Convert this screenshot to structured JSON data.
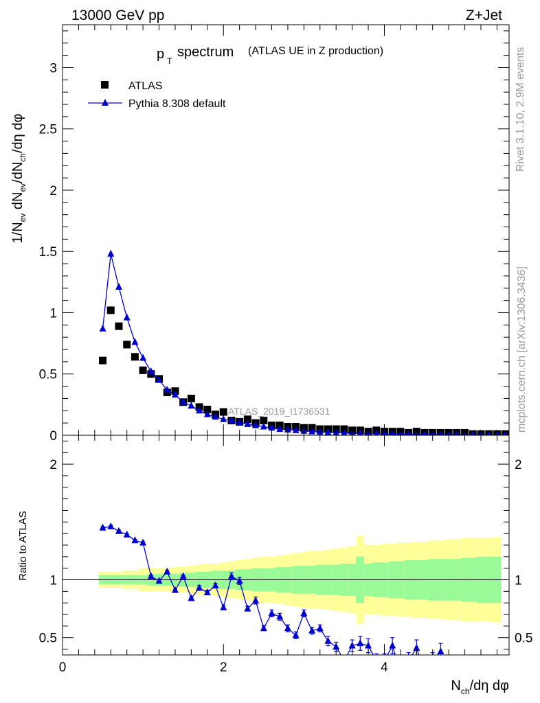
{
  "header": {
    "energy": "13000 GeV pp",
    "process": "Z+Jet"
  },
  "side_texts": {
    "rivet": "Rivet 3.1.10,  2.9M events",
    "mcplots": "mcplots.cern.ch [arXiv:1306.3436]"
  },
  "colors": {
    "mc_line": "#0000cc",
    "band_inner": "#98fb98",
    "band_outer": "#ffff99",
    "data": "#000000",
    "watermark": "#9a9a9a"
  },
  "chart_data": [
    {
      "type": "scatter",
      "title_main": "spectrum",
      "title_sub": "(ATLAS UE in Z production)",
      "ylabel": "1/N_ev dN_ev/dN_ch/dη dφ",
      "xlabel": "N_ch/dη dφ",
      "watermark": "ATLAS_2019_I1736531",
      "xlim": [
        0,
        5.55
      ],
      "ylim": [
        0,
        3.35
      ],
      "x_ticks": [
        0,
        2,
        4
      ],
      "y_ticks": [
        0,
        0.5,
        1,
        1.5,
        2,
        2.5,
        3
      ],
      "y_tick_labels": [
        "0",
        "0.5",
        "1",
        "1.5",
        "2",
        "2.5",
        "3"
      ],
      "legend": [
        {
          "name": "ATLAS",
          "marker": "square"
        },
        {
          "name": "Pythia 8.308 default",
          "marker": "triangle"
        }
      ],
      "series": [
        {
          "name": "ATLAS",
          "x": [
            0.5,
            0.6,
            0.7,
            0.8,
            0.9,
            1.0,
            1.1,
            1.2,
            1.3,
            1.4,
            1.5,
            1.6,
            1.7,
            1.8,
            1.9,
            2.0,
            2.1,
            2.2,
            2.3,
            2.4,
            2.5,
            2.6,
            2.7,
            2.8,
            2.9,
            3.0,
            3.1,
            3.2,
            3.3,
            3.4,
            3.5,
            3.6,
            3.7,
            3.8,
            3.9,
            4.0,
            4.1,
            4.2,
            4.3,
            4.4,
            4.5,
            4.6,
            4.7,
            4.8,
            4.9,
            5.0,
            5.1,
            5.2,
            5.3,
            5.4,
            5.5
          ],
          "values": [
            0.61,
            1.02,
            0.89,
            0.74,
            0.64,
            0.53,
            0.5,
            0.46,
            0.35,
            0.36,
            0.27,
            0.3,
            0.23,
            0.21,
            0.17,
            0.19,
            0.12,
            0.11,
            0.13,
            0.1,
            0.12,
            0.08,
            0.08,
            0.07,
            0.07,
            0.06,
            0.06,
            0.05,
            0.05,
            0.05,
            0.05,
            0.04,
            0.04,
            0.03,
            0.04,
            0.03,
            0.03,
            0.03,
            0.02,
            0.03,
            0.02,
            0.02,
            0.02,
            0.02,
            0.02,
            0.02,
            0.01,
            0.01,
            0.01,
            0.01,
            0.01
          ]
        },
        {
          "name": "Pythia 8.308 default",
          "x": [
            0.5,
            0.6,
            0.7,
            0.8,
            0.9,
            1.0,
            1.1,
            1.2,
            1.3,
            1.4,
            1.5,
            1.6,
            1.7,
            1.8,
            1.9,
            2.0,
            2.1,
            2.2,
            2.3,
            2.4,
            2.5,
            2.6,
            2.7,
            2.8,
            2.9,
            3.0,
            3.1,
            3.2,
            3.3,
            3.4,
            3.5,
            3.6,
            3.7,
            3.8,
            3.9,
            4.0,
            4.1,
            4.2,
            4.3,
            4.4,
            4.5,
            4.6,
            4.7,
            4.8,
            4.9,
            5.0,
            5.1,
            5.2,
            5.3,
            5.4,
            5.5
          ],
          "values": [
            0.87,
            1.48,
            1.21,
            0.96,
            0.76,
            0.63,
            0.52,
            0.45,
            0.37,
            0.33,
            0.27,
            0.24,
            0.2,
            0.17,
            0.15,
            0.13,
            0.12,
            0.1,
            0.09,
            0.08,
            0.07,
            0.06,
            0.05,
            0.045,
            0.04,
            0.035,
            0.03,
            0.027,
            0.024,
            0.021,
            0.018,
            0.016,
            0.014,
            0.012,
            0.011,
            0.01,
            0.009,
            0.008,
            0.007,
            0.006,
            0.006,
            0.005,
            0.005,
            0.004,
            0.004,
            0.003,
            0.003,
            0.003,
            0.002,
            0.002,
            0.002
          ]
        }
      ]
    },
    {
      "type": "line",
      "ylabel": "Ratio to ATLAS",
      "xlim": [
        0,
        5.55
      ],
      "ylim": [
        0.35,
        2.25
      ],
      "x_ticks": [
        0,
        2,
        4
      ],
      "x_tick_labels": [
        "0",
        "2",
        "4"
      ],
      "y_ticks": [
        0.5,
        1,
        2
      ],
      "y_tick_labels": [
        "0.5",
        "1",
        "2"
      ],
      "reference_line": 1,
      "bin_edges": [
        0.45,
        0.55,
        0.65,
        0.75,
        0.85,
        0.95,
        1.05,
        1.15,
        1.25,
        1.35,
        1.45,
        1.55,
        1.65,
        1.75,
        1.85,
        1.95,
        2.05,
        2.15,
        2.25,
        2.35,
        2.45,
        2.55,
        2.65,
        2.75,
        2.85,
        2.95,
        3.05,
        3.15,
        3.25,
        3.35,
        3.45,
        3.55,
        3.65,
        3.75,
        3.85,
        3.95,
        4.05,
        4.15,
        4.25,
        4.35,
        4.45,
        4.55,
        4.65,
        4.75,
        4.85,
        4.95,
        5.05,
        5.15,
        5.25,
        5.35,
        5.45,
        5.55
      ],
      "band_inner": [
        0.04,
        0.04,
        0.04,
        0.04,
        0.04,
        0.04,
        0.05,
        0.05,
        0.05,
        0.05,
        0.06,
        0.06,
        0.07,
        0.07,
        0.08,
        0.08,
        0.08,
        0.09,
        0.09,
        0.1,
        0.1,
        0.1,
        0.11,
        0.11,
        0.12,
        0.12,
        0.12,
        0.13,
        0.13,
        0.13,
        0.14,
        0.14,
        0.2,
        0.14,
        0.15,
        0.15,
        0.16,
        0.16,
        0.17,
        0.17,
        0.17,
        0.18,
        0.18,
        0.18,
        0.18,
        0.19,
        0.19,
        0.2,
        0.2,
        0.2
      ],
      "band_outer": [
        0.07,
        0.07,
        0.07,
        0.08,
        0.08,
        0.1,
        0.1,
        0.1,
        0.1,
        0.11,
        0.11,
        0.12,
        0.13,
        0.14,
        0.14,
        0.15,
        0.16,
        0.17,
        0.18,
        0.19,
        0.2,
        0.2,
        0.21,
        0.22,
        0.23,
        0.24,
        0.25,
        0.25,
        0.26,
        0.27,
        0.28,
        0.29,
        0.38,
        0.3,
        0.3,
        0.31,
        0.31,
        0.32,
        0.32,
        0.33,
        0.33,
        0.34,
        0.34,
        0.35,
        0.35,
        0.36,
        0.36,
        0.36,
        0.36,
        0.37
      ],
      "series": [
        {
          "name": "Pythia 8.308 default",
          "x": [
            0.5,
            0.6,
            0.7,
            0.8,
            0.9,
            1.0,
            1.1,
            1.2,
            1.3,
            1.4,
            1.5,
            1.6,
            1.7,
            1.8,
            1.9,
            2.0,
            2.1,
            2.2,
            2.3,
            2.4,
            2.5,
            2.6,
            2.7,
            2.8,
            2.9,
            3.0,
            3.1,
            3.2,
            3.3,
            3.4,
            3.5,
            3.6,
            3.7,
            3.8,
            3.9,
            4.0,
            4.1,
            4.2,
            4.3,
            4.4,
            4.5,
            4.6,
            4.7
          ],
          "values": [
            1.45,
            1.46,
            1.42,
            1.39,
            1.34,
            1.32,
            1.03,
            0.99,
            1.07,
            0.91,
            1.03,
            0.84,
            0.93,
            0.89,
            0.95,
            0.76,
            1.03,
            0.99,
            0.75,
            0.82,
            0.58,
            0.71,
            0.68,
            0.58,
            0.52,
            0.71,
            0.56,
            0.58,
            0.47,
            0.42,
            0.3,
            0.43,
            0.45,
            0.43,
            0.3,
            0.3,
            0.43,
            0.2,
            0.3,
            0.41,
            0.2,
            0.3,
            0.38
          ],
          "errors": [
            0.01,
            0.01,
            0.01,
            0.01,
            0.01,
            0.01,
            0.01,
            0.01,
            0.01,
            0.01,
            0.01,
            0.01,
            0.02,
            0.02,
            0.02,
            0.02,
            0.03,
            0.03,
            0.02,
            0.03,
            0.02,
            0.03,
            0.03,
            0.03,
            0.03,
            0.03,
            0.03,
            0.03,
            0.04,
            0.04,
            0.04,
            0.05,
            0.06,
            0.06,
            0.06,
            0.06,
            0.07,
            0.07,
            0.07,
            0.07,
            0.07,
            0.07,
            0.07
          ]
        }
      ]
    }
  ]
}
